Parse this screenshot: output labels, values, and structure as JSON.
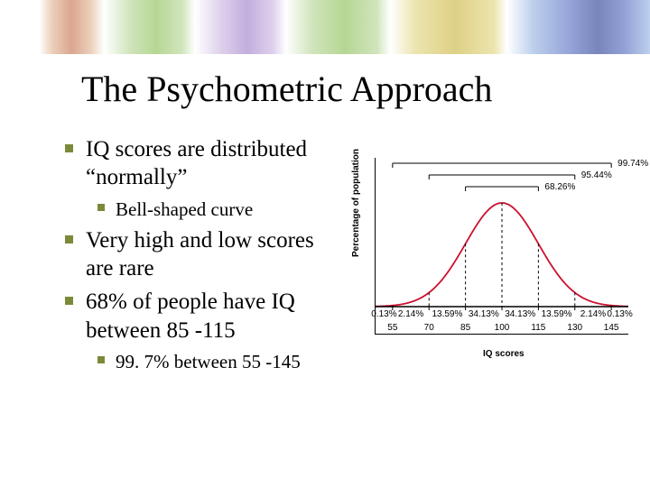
{
  "title": "The Psychometric Approach",
  "bullets": [
    {
      "level": 0,
      "text": "IQ scores are distributed “normally”"
    },
    {
      "level": 1,
      "text": "Bell-shaped curve"
    },
    {
      "level": 0,
      "text": "Very high and low scores are rare"
    },
    {
      "level": 0,
      "text": "68% of people have IQ between 85 -115"
    },
    {
      "level": 1,
      "text": "99. 7% between 55 -145"
    }
  ],
  "chart": {
    "type": "bell-curve",
    "y_label": "Percentage of population",
    "x_label": "IQ scores",
    "curve_color": "#cc1030",
    "curve_width": 1.8,
    "axis_color": "#000000",
    "background_color": "#ffffff",
    "dash_color": "#000000",
    "x_ticks": [
      55,
      70,
      85,
      100,
      115,
      130,
      145
    ],
    "x_min": 48,
    "x_max": 152,
    "region_pcts": [
      "0.13%",
      "2.14%",
      "13.59%",
      "34.13%",
      "34.13%",
      "13.59%",
      "2.14%",
      "0.13%"
    ],
    "brackets": [
      {
        "label": "99.74%",
        "from": 55,
        "to": 145,
        "y_offset": 0
      },
      {
        "label": "95.44%",
        "from": 70,
        "to": 130,
        "y_offset": 13
      },
      {
        "label": "68.26%",
        "from": 85,
        "to": 115,
        "y_offset": 26
      }
    ],
    "label_fontsize": 10,
    "label_fontfamily": "Arial"
  },
  "banner": {
    "leaf_colors": [
      "#d4967a",
      "#a8d080",
      "#b8a0d8",
      "#a8d080",
      "#d8c870",
      "#7080c8"
    ]
  }
}
